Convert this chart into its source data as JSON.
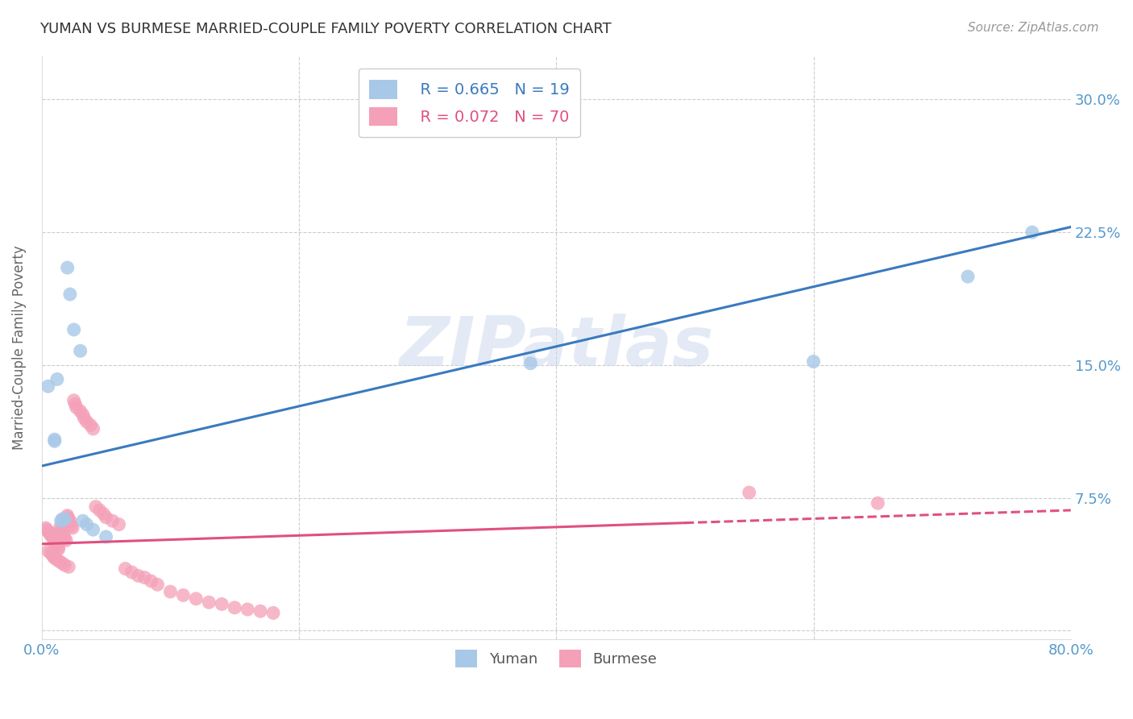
{
  "title": "YUMAN VS BURMESE MARRIED-COUPLE FAMILY POVERTY CORRELATION CHART",
  "source": "Source: ZipAtlas.com",
  "xlabel": "",
  "ylabel": "Married-Couple Family Poverty",
  "xlim": [
    0.0,
    0.8
  ],
  "ylim": [
    -0.005,
    0.325
  ],
  "xticks": [
    0.0,
    0.2,
    0.4,
    0.6,
    0.8
  ],
  "xtick_labels": [
    "0.0%",
    "",
    "",
    "",
    "80.0%"
  ],
  "yticks": [
    0.0,
    0.075,
    0.15,
    0.225,
    0.3
  ],
  "ytick_labels": [
    "",
    "7.5%",
    "15.0%",
    "22.5%",
    "30.0%"
  ],
  "watermark": "ZIPatlas",
  "legend_blue_R": "R = 0.665",
  "legend_blue_N": "N = 19",
  "legend_pink_R": "R = 0.072",
  "legend_pink_N": "N = 70",
  "yuman_color": "#a8c8e8",
  "burmese_color": "#f4a0b8",
  "yuman_line_color": "#3a7abf",
  "burmese_line_color": "#e05080",
  "background_color": "#ffffff",
  "grid_color": "#cccccc",
  "title_color": "#333333",
  "axis_label_color": "#666666",
  "tick_label_color": "#5599cc",
  "yuman_scatter": [
    [
      0.005,
      0.138
    ],
    [
      0.01,
      0.108
    ],
    [
      0.01,
      0.107
    ],
    [
      0.012,
      0.142
    ],
    [
      0.015,
      0.062
    ],
    [
      0.016,
      0.063
    ],
    [
      0.018,
      0.063
    ],
    [
      0.02,
      0.205
    ],
    [
      0.022,
      0.19
    ],
    [
      0.025,
      0.17
    ],
    [
      0.03,
      0.158
    ],
    [
      0.032,
      0.062
    ],
    [
      0.035,
      0.06
    ],
    [
      0.04,
      0.057
    ],
    [
      0.05,
      0.053
    ],
    [
      0.38,
      0.151
    ],
    [
      0.6,
      0.152
    ],
    [
      0.72,
      0.2
    ],
    [
      0.77,
      0.225
    ]
  ],
  "burmese_scatter": [
    [
      0.003,
      0.058
    ],
    [
      0.004,
      0.057
    ],
    [
      0.005,
      0.056
    ],
    [
      0.005,
      0.045
    ],
    [
      0.006,
      0.055
    ],
    [
      0.007,
      0.054
    ],
    [
      0.007,
      0.044
    ],
    [
      0.008,
      0.053
    ],
    [
      0.008,
      0.043
    ],
    [
      0.009,
      0.052
    ],
    [
      0.009,
      0.042
    ],
    [
      0.01,
      0.051
    ],
    [
      0.01,
      0.05
    ],
    [
      0.01,
      0.041
    ],
    [
      0.011,
      0.049
    ],
    [
      0.012,
      0.048
    ],
    [
      0.012,
      0.04
    ],
    [
      0.013,
      0.047
    ],
    [
      0.013,
      0.046
    ],
    [
      0.014,
      0.058
    ],
    [
      0.014,
      0.039
    ],
    [
      0.015,
      0.057
    ],
    [
      0.015,
      0.056
    ],
    [
      0.016,
      0.055
    ],
    [
      0.016,
      0.038
    ],
    [
      0.017,
      0.054
    ],
    [
      0.017,
      0.053
    ],
    [
      0.018,
      0.052
    ],
    [
      0.018,
      0.037
    ],
    [
      0.019,
      0.051
    ],
    [
      0.02,
      0.065
    ],
    [
      0.02,
      0.064
    ],
    [
      0.021,
      0.063
    ],
    [
      0.021,
      0.036
    ],
    [
      0.022,
      0.062
    ],
    [
      0.022,
      0.06
    ],
    [
      0.023,
      0.059
    ],
    [
      0.024,
      0.058
    ],
    [
      0.025,
      0.13
    ],
    [
      0.026,
      0.128
    ],
    [
      0.027,
      0.126
    ],
    [
      0.03,
      0.124
    ],
    [
      0.032,
      0.122
    ],
    [
      0.033,
      0.12
    ],
    [
      0.035,
      0.118
    ],
    [
      0.038,
      0.116
    ],
    [
      0.04,
      0.114
    ],
    [
      0.042,
      0.07
    ],
    [
      0.045,
      0.068
    ],
    [
      0.048,
      0.066
    ],
    [
      0.05,
      0.064
    ],
    [
      0.055,
      0.062
    ],
    [
      0.06,
      0.06
    ],
    [
      0.065,
      0.035
    ],
    [
      0.07,
      0.033
    ],
    [
      0.075,
      0.031
    ],
    [
      0.08,
      0.03
    ],
    [
      0.085,
      0.028
    ],
    [
      0.09,
      0.026
    ],
    [
      0.1,
      0.022
    ],
    [
      0.11,
      0.02
    ],
    [
      0.12,
      0.018
    ],
    [
      0.13,
      0.016
    ],
    [
      0.14,
      0.015
    ],
    [
      0.15,
      0.013
    ],
    [
      0.16,
      0.012
    ],
    [
      0.17,
      0.011
    ],
    [
      0.18,
      0.01
    ],
    [
      0.55,
      0.078
    ],
    [
      0.65,
      0.072
    ]
  ],
  "yuman_line": {
    "x0": 0.0,
    "y0": 0.093,
    "x1": 0.8,
    "y1": 0.228
  },
  "burmese_line": {
    "x0": 0.0,
    "y0": 0.049,
    "x1": 0.8,
    "y1": 0.068
  },
  "burmese_line_dashed_start": 0.5
}
